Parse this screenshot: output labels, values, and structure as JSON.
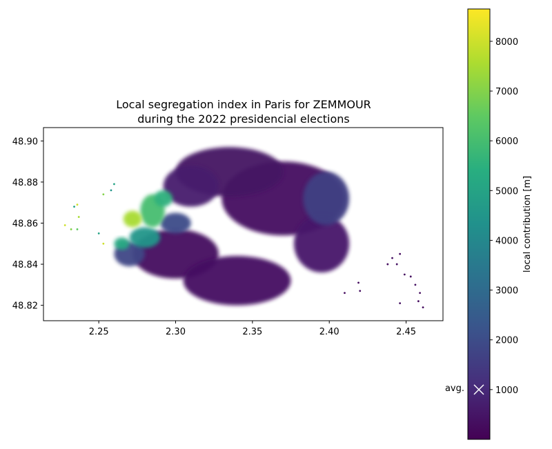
{
  "chart_data": {
    "type": "scatter",
    "title_line1": "Local segregation index in Paris for ZEMMOUR",
    "title_line2": "during the 2022 presidencial elections",
    "xlim": [
      2.214,
      2.474
    ],
    "ylim": [
      48.8125,
      48.9065
    ],
    "x_ticks": [
      2.25,
      2.3,
      2.35,
      2.4,
      2.45
    ],
    "x_tick_labels": [
      "2.25",
      "2.30",
      "2.35",
      "2.40",
      "2.45"
    ],
    "y_ticks": [
      48.82,
      48.84,
      48.86,
      48.88,
      48.9
    ],
    "y_tick_labels": [
      "48.82",
      "48.84",
      "48.86",
      "48.88",
      "48.90"
    ],
    "grid": false,
    "colormap": "viridis",
    "colorbar": {
      "label": "local contribution [m]",
      "vmin": 0,
      "vmax": 8650,
      "ticks": [
        1000,
        2000,
        3000,
        4000,
        5000,
        6000,
        7000,
        8000
      ],
      "tick_labels": [
        "1000",
        "2000",
        "3000",
        "4000",
        "5000",
        "6000",
        "7000",
        "8000"
      ],
      "avg_label": "avg.",
      "avg_value": 1000
    },
    "regions": [
      {
        "x": 2.3,
        "y": 48.845,
        "rx": 0.028,
        "ry": 0.012,
        "value": 300
      },
      {
        "x": 2.34,
        "y": 48.832,
        "rx": 0.035,
        "ry": 0.012,
        "value": 400
      },
      {
        "x": 2.37,
        "y": 48.872,
        "rx": 0.04,
        "ry": 0.018,
        "value": 350
      },
      {
        "x": 2.335,
        "y": 48.885,
        "rx": 0.035,
        "ry": 0.012,
        "value": 450
      },
      {
        "x": 2.395,
        "y": 48.85,
        "rx": 0.018,
        "ry": 0.014,
        "value": 600
      },
      {
        "x": 2.398,
        "y": 48.872,
        "rx": 0.015,
        "ry": 0.013,
        "value": 1600
      },
      {
        "x": 2.31,
        "y": 48.878,
        "rx": 0.018,
        "ry": 0.01,
        "value": 700
      },
      {
        "x": 2.3,
        "y": 48.86,
        "rx": 0.01,
        "ry": 0.005,
        "value": 2000
      },
      {
        "x": 2.27,
        "y": 48.845,
        "rx": 0.01,
        "ry": 0.006,
        "value": 1800
      },
      {
        "x": 2.28,
        "y": 48.853,
        "rx": 0.01,
        "ry": 0.005,
        "value": 4500
      },
      {
        "x": 2.285,
        "y": 48.866,
        "rx": 0.008,
        "ry": 0.008,
        "value": 6000
      },
      {
        "x": 2.272,
        "y": 48.862,
        "rx": 0.006,
        "ry": 0.004,
        "value": 7500
      },
      {
        "x": 2.265,
        "y": 48.85,
        "rx": 0.005,
        "ry": 0.003,
        "value": 5200
      },
      {
        "x": 2.292,
        "y": 48.872,
        "rx": 0.006,
        "ry": 0.004,
        "value": 5500
      }
    ],
    "isolated_points": [
      {
        "x": 2.228,
        "y": 48.859,
        "value": 8000
      },
      {
        "x": 2.234,
        "y": 48.868,
        "value": 5000
      },
      {
        "x": 2.236,
        "y": 48.869,
        "value": 8000
      },
      {
        "x": 2.232,
        "y": 48.857,
        "value": 7000
      },
      {
        "x": 2.236,
        "y": 48.857,
        "value": 6500
      },
      {
        "x": 2.237,
        "y": 48.863,
        "value": 7500
      },
      {
        "x": 2.25,
        "y": 48.855,
        "value": 5000
      },
      {
        "x": 2.253,
        "y": 48.85,
        "value": 8000
      },
      {
        "x": 2.253,
        "y": 48.874,
        "value": 7000
      },
      {
        "x": 2.258,
        "y": 48.876,
        "value": 4500
      },
      {
        "x": 2.26,
        "y": 48.879,
        "value": 5000
      },
      {
        "x": 2.438,
        "y": 48.84,
        "value": 300
      },
      {
        "x": 2.441,
        "y": 48.843,
        "value": 400
      },
      {
        "x": 2.446,
        "y": 48.845,
        "value": 300
      },
      {
        "x": 2.444,
        "y": 48.84,
        "value": 400
      },
      {
        "x": 2.449,
        "y": 48.835,
        "value": 300
      },
      {
        "x": 2.453,
        "y": 48.834,
        "value": 300
      },
      {
        "x": 2.456,
        "y": 48.83,
        "value": 400
      },
      {
        "x": 2.459,
        "y": 48.826,
        "value": 300
      },
      {
        "x": 2.458,
        "y": 48.822,
        "value": 300
      },
      {
        "x": 2.461,
        "y": 48.819,
        "value": 300
      },
      {
        "x": 2.446,
        "y": 48.821,
        "value": 400
      },
      {
        "x": 2.419,
        "y": 48.831,
        "value": 300
      },
      {
        "x": 2.42,
        "y": 48.827,
        "value": 300
      },
      {
        "x": 2.41,
        "y": 48.826,
        "value": 300
      }
    ]
  }
}
